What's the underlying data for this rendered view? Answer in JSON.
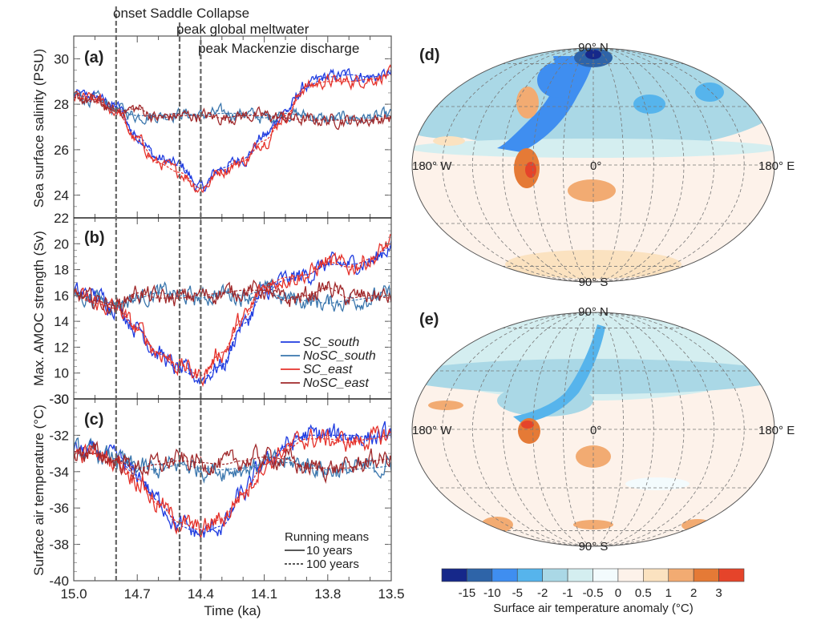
{
  "chart_data": [
    {
      "type": "line",
      "panel": "(a)",
      "ylabel": "Sea surface salinity (PSU)",
      "xlabel": "Time (ka)",
      "xlim": [
        15.0,
        13.5
      ],
      "ylim": [
        23.0,
        31.0
      ],
      "yticks": [
        "30",
        "28",
        "26",
        "24"
      ],
      "ybottom_label": "22",
      "x_knots": [
        15.0,
        14.9,
        14.8,
        14.7,
        14.6,
        14.5,
        14.4,
        14.3,
        14.2,
        14.1,
        14.0,
        13.9,
        13.8,
        13.7,
        13.6,
        13.5
      ],
      "series": [
        {
          "name": "SC_south",
          "values": [
            28.4,
            28.3,
            27.9,
            26.6,
            25.6,
            25.3,
            24.3,
            25.2,
            25.6,
            26.6,
            27.7,
            28.8,
            29.2,
            29.3,
            29.2,
            29.3
          ]
        },
        {
          "name": "NoSC_south",
          "values": [
            28.4,
            28.2,
            27.8,
            27.5,
            27.5,
            27.6,
            27.5,
            27.6,
            27.6,
            27.4,
            27.6,
            27.5,
            27.3,
            27.4,
            27.4,
            27.5
          ]
        },
        {
          "name": "SC_east",
          "values": [
            28.3,
            28.2,
            27.7,
            26.4,
            25.4,
            25.0,
            24.3,
            25.1,
            25.5,
            26.4,
            27.5,
            28.8,
            29.0,
            29.0,
            29.1,
            29.3
          ]
        },
        {
          "name": "NoSC_east",
          "values": [
            28.3,
            28.1,
            27.7,
            27.8,
            27.4,
            27.5,
            27.5,
            27.4,
            27.5,
            27.5,
            27.4,
            27.3,
            27.3,
            27.3,
            27.3,
            27.4
          ]
        }
      ],
      "noise": 0.28
    },
    {
      "type": "line",
      "panel": "(b)",
      "ylabel": "Max. AMOC strength (Sv)",
      "xlabel": "Time (ka)",
      "xlim": [
        15.0,
        13.5
      ],
      "ylim": [
        8.0,
        22.0
      ],
      "yticks": [
        "20",
        "18",
        "16",
        "14",
        "12",
        "10"
      ],
      "ybottom_label": "-30",
      "x_knots": [
        15.0,
        14.9,
        14.8,
        14.7,
        14.6,
        14.5,
        14.4,
        14.3,
        14.2,
        14.1,
        14.0,
        13.9,
        13.8,
        13.7,
        13.6,
        13.5
      ],
      "series": [
        {
          "name": "SC_south",
          "values": [
            16.2,
            16.0,
            15.2,
            13.5,
            11.5,
            10.2,
            9.6,
            10.6,
            13.8,
            16.2,
            17.2,
            17.6,
            18.4,
            18.4,
            18.6,
            19.8
          ]
        },
        {
          "name": "NoSC_south",
          "values": [
            16.0,
            15.8,
            15.4,
            15.8,
            16.2,
            16.0,
            15.8,
            16.2,
            16.0,
            16.4,
            15.8,
            15.6,
            15.4,
            15.6,
            15.8,
            16.0
          ]
        },
        {
          "name": "SC_east",
          "values": [
            16.0,
            15.4,
            15.0,
            13.4,
            11.6,
            10.6,
            9.8,
            11.6,
            14.2,
            16.6,
            17.4,
            17.6,
            18.6,
            18.2,
            18.8,
            20.0
          ]
        },
        {
          "name": "NoSC_east",
          "values": [
            16.0,
            15.6,
            15.2,
            16.2,
            15.8,
            15.8,
            16.0,
            16.2,
            16.4,
            16.4,
            15.6,
            16.0,
            16.6,
            15.8,
            16.0,
            15.8
          ]
        }
      ],
      "noise": 0.7
    },
    {
      "type": "line",
      "panel": "(c)",
      "ylabel": "Surface air temperature (°C)",
      "xlabel": "Time (ka)",
      "xlim": [
        15.0,
        13.5
      ],
      "ylim": [
        -40.0,
        -30.0
      ],
      "yticks": [
        "-30",
        "-32",
        "-34",
        "-36",
        "-38",
        "-40"
      ],
      "xticks": [
        "15.0",
        "14.7",
        "14.4",
        "14.1",
        "13.8",
        "13.5"
      ],
      "x_knots": [
        15.0,
        14.9,
        14.8,
        14.7,
        14.6,
        14.5,
        14.4,
        14.3,
        14.2,
        14.1,
        14.0,
        13.9,
        13.8,
        13.7,
        13.6,
        13.5
      ],
      "series": [
        {
          "name": "SC_south",
          "values": [
            -32.9,
            -33.0,
            -33.3,
            -34.2,
            -35.6,
            -37.0,
            -37.4,
            -37.0,
            -35.2,
            -33.6,
            -32.6,
            -32.0,
            -32.0,
            -32.0,
            -32.1,
            -32.0
          ]
        },
        {
          "name": "NoSC_south",
          "values": [
            -32.9,
            -33.0,
            -33.3,
            -33.8,
            -33.9,
            -33.6,
            -33.8,
            -33.9,
            -33.8,
            -33.6,
            -33.5,
            -33.6,
            -33.9,
            -33.9,
            -33.8,
            -33.7
          ]
        },
        {
          "name": "SC_east",
          "values": [
            -33.0,
            -33.0,
            -33.4,
            -34.4,
            -35.8,
            -36.8,
            -37.2,
            -36.6,
            -35.2,
            -33.6,
            -32.8,
            -32.2,
            -32.2,
            -32.4,
            -32.2,
            -32.0
          ]
        },
        {
          "name": "NoSC_east",
          "values": [
            -32.9,
            -33.0,
            -33.4,
            -33.8,
            -33.6,
            -33.4,
            -33.5,
            -33.6,
            -33.4,
            -33.2,
            -33.3,
            -33.8,
            -33.8,
            -33.8,
            -33.4,
            -33.3
          ]
        }
      ],
      "noise": 0.55
    }
  ],
  "events": [
    {
      "label": "onset Saddle Collapse",
      "time": 14.8
    },
    {
      "label": "peak global meltwater",
      "time": 14.5
    },
    {
      "label": "peak Mackenzie discharge",
      "time": 14.4
    }
  ],
  "legend": {
    "placement": "lower-right of panel (b)",
    "items": [
      {
        "name": "SC_south",
        "color": "#1f3ce0"
      },
      {
        "name": "NoSC_south",
        "color": "#3a76ad"
      },
      {
        "name": "SC_east",
        "color": "#e5322b"
      },
      {
        "name": "NoSC_east",
        "color": "#a0282a"
      }
    ]
  },
  "running_means": {
    "title": "Running means",
    "items": [
      {
        "label": "10 years",
        "style": "solid"
      },
      {
        "label": "100 years",
        "style": "dashed"
      }
    ]
  },
  "maps": [
    {
      "panel": "(d)",
      "north_label": "90° N",
      "south_label": "90° S",
      "west_label": "180° W",
      "east_label": "180° E",
      "center_label": "0°"
    },
    {
      "panel": "(e)",
      "north_label": "90° N",
      "south_label": "90° S",
      "west_label": "180° W",
      "east_label": "180° E",
      "center_label": "0°"
    }
  ],
  "colorbar": {
    "title": "Surface air temperature anomaly (°C)",
    "tick_labels": [
      "-15",
      "-10",
      "-5",
      "-2",
      "-1",
      "-0.5",
      "0",
      "0.5",
      "1",
      "2",
      "3"
    ],
    "colors": [
      "#16288a",
      "#2e64a8",
      "#3f8ef0",
      "#56b4ec",
      "#aad8e6",
      "#d4eef0",
      "#f3fbfd",
      "#fdf2ea",
      "#fbe2c0",
      "#f2ab72",
      "#e57a36",
      "#e5442a"
    ]
  }
}
